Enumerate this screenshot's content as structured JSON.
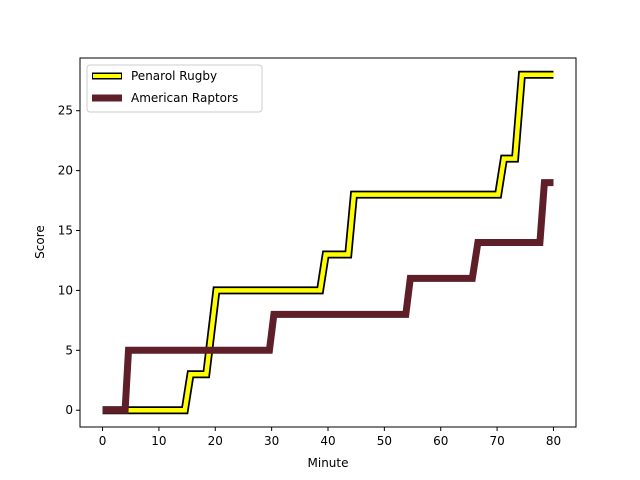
{
  "chart_data": {
    "type": "line",
    "title": "",
    "xlabel": "Minute",
    "ylabel": "Score",
    "xlim": [
      -4,
      84
    ],
    "ylim": [
      -1.4,
      29.4
    ],
    "x_ticks": [
      0,
      10,
      20,
      30,
      40,
      50,
      60,
      70,
      80
    ],
    "y_ticks": [
      0,
      5,
      10,
      15,
      20,
      25
    ],
    "grid": false,
    "legend_position": "top-left",
    "series": [
      {
        "name": "Penarol Rugby",
        "color": "#ffff00",
        "outline": "#000000",
        "points": [
          [
            0,
            0
          ],
          [
            14.6,
            0
          ],
          [
            15.6,
            3
          ],
          [
            18.4,
            3
          ],
          [
            20.2,
            10
          ],
          [
            38.6,
            10
          ],
          [
            39.6,
            13
          ],
          [
            43.6,
            13
          ],
          [
            44.6,
            18
          ],
          [
            70.2,
            18
          ],
          [
            71.2,
            21
          ],
          [
            73.2,
            21
          ],
          [
            74.4,
            28
          ],
          [
            80,
            28
          ]
        ]
      },
      {
        "name": "American Raptors",
        "color": "#5e1f28",
        "outline": "#3b1218",
        "points": [
          [
            0,
            0
          ],
          [
            4,
            0
          ],
          [
            4.6,
            5
          ],
          [
            29.6,
            5
          ],
          [
            30.4,
            8
          ],
          [
            53.8,
            8
          ],
          [
            54.6,
            11
          ],
          [
            65.6,
            11
          ],
          [
            66.6,
            14
          ],
          [
            77.6,
            14
          ],
          [
            78.4,
            19
          ],
          [
            80,
            19
          ]
        ]
      }
    ]
  }
}
